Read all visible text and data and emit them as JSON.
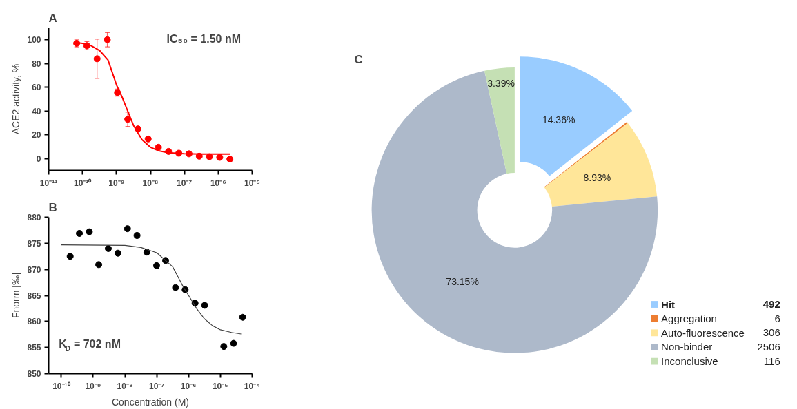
{
  "chart_data": [
    {
      "type": "scatter",
      "title": "A",
      "ylabel": "ACE2 activity, %",
      "log": "x",
      "marker": "circle",
      "grid": false,
      "xlim": [
        1e-11,
        1e-05
      ],
      "xticks": [
        {
          "value": 1e-11,
          "label": "10⁻¹¹"
        },
        {
          "value": 1e-10,
          "label": "10⁻¹⁰"
        },
        {
          "value": 1e-09,
          "label": "10⁻⁹"
        },
        {
          "value": 1e-08,
          "label": "10⁻⁸"
        },
        {
          "value": 1e-07,
          "label": "10⁻⁷"
        },
        {
          "value": 1e-06,
          "label": "10⁻⁶"
        },
        {
          "value": 1e-05,
          "label": "10⁻⁵"
        }
      ],
      "ylim": [
        -10,
        110
      ],
      "yticks": [
        0,
        20,
        40,
        60,
        80,
        100
      ],
      "annotations": [
        "IC₅₀ = 1.50 nM"
      ],
      "series": [
        {
          "type": "scatter",
          "color": "#ff0000",
          "x": [
            6.7e-11,
            1.34e-10,
            2.68e-10,
            5.36e-10,
            1.07e-09,
            2.14e-09,
            4.29e-09,
            8.58e-09,
            1.72e-08,
            3.43e-08,
            6.86e-08,
            1.37e-07,
            2.75e-07,
            5.49e-07,
            1.1e-06,
            2.2e-06
          ],
          "values": [
            97,
            95,
            84,
            100,
            55.5,
            33,
            25,
            16.5,
            9.5,
            6,
            4.5,
            4,
            2,
            1.5,
            1,
            -0.5
          ],
          "errors": [
            3,
            3.5,
            [
              67.5,
              100.5
            ],
            [
              94,
              106
            ],
            3,
            [
              27,
              39
            ],
            null,
            null,
            null,
            null,
            null,
            null,
            null,
            null,
            null,
            null
          ]
        },
        {
          "type": "line",
          "marker": "none",
          "color": "#ff0000",
          "x": [
            6.6e-11,
            1e-10,
            1.78e-10,
            3.16e-10,
            5.62e-10,
            1e-09,
            1.5e-09,
            2.14e-09,
            3.16e-09,
            5.62e-09,
            1e-08,
            1.78e-08,
            3.16e-08,
            1e-07,
            3.16e-07,
            2.2e-06
          ],
          "values": [
            97.5,
            97,
            95,
            91,
            83,
            62,
            51,
            40,
            28,
            16,
            9.5,
            6.5,
            5,
            4,
            3.8,
            3.8
          ]
        }
      ]
    },
    {
      "type": "scatter",
      "title": "B",
      "xlabel": "Concentration (M)",
      "ylabel": "Fnorm [‰]",
      "log": "x",
      "marker": "circle",
      "grid": false,
      "xlim": [
        4e-11,
        0.0001
      ],
      "xticks": [
        {
          "value": 1e-10,
          "label": "10⁻¹⁰"
        },
        {
          "value": 1e-09,
          "label": "10⁻⁹"
        },
        {
          "value": 1e-08,
          "label": "10⁻⁸"
        },
        {
          "value": 1e-07,
          "label": "10⁻⁷"
        },
        {
          "value": 1e-06,
          "label": "10⁻⁶"
        },
        {
          "value": 1e-05,
          "label": "10⁻⁵"
        },
        {
          "value": 0.0001,
          "label": "10⁻⁴"
        }
      ],
      "ylim": [
        850,
        880
      ],
      "yticks": [
        850,
        855,
        860,
        865,
        870,
        875,
        880
      ],
      "annotations": [
        "K$_{D}$ = 702 nM"
      ],
      "series": [
        {
          "type": "scatter",
          "color": "#000000",
          "x": [
            1.9e-10,
            3.7e-10,
            7.6e-10,
            1.5e-09,
            3e-09,
            6e-09,
            1.2e-08,
            2.4e-08,
            4.9e-08,
            9.9e-08,
            1.9e-07,
            3.9e-07,
            7.8e-07,
            1.6e-06,
            3.2e-06,
            1.28e-05,
            2.6e-05,
            5e-05
          ],
          "values": [
            872.5,
            876.9,
            877.2,
            870.9,
            874.0,
            873.1,
            877.8,
            876.5,
            873.3,
            870.7,
            871.7,
            866.5,
            866.1,
            863.5,
            863.1,
            855.2,
            855.8,
            860.8
          ]
        },
        {
          "type": "line",
          "marker": "none",
          "color": "#404040",
          "x": [
            1e-10,
            1e-08,
            3.16e-08,
            1e-07,
            3.16e-07,
            7e-07,
            1e-06,
            1.78e-06,
            3.16e-06,
            5.62e-06,
            1e-05,
            2.24e-05,
            4.5e-05
          ],
          "values": [
            874.7,
            874.6,
            874.2,
            873.2,
            870.5,
            866.5,
            865,
            862.5,
            860.5,
            859.2,
            858.4,
            857.9,
            857.6
          ]
        }
      ]
    },
    {
      "type": "donut",
      "title": "C",
      "legend": "bottom right",
      "categories": [
        "Hit",
        "Aggregation",
        "Auto-fluorescence",
        "Non-binder",
        "Inconclusive"
      ],
      "values": [
        14.36,
        0.17,
        8.93,
        73.15,
        3.39
      ],
      "annotations": [
        "492",
        "6",
        "306",
        "2506",
        "116"
      ],
      "colors": [
        "#99ccff",
        "#ed7d31",
        "#ffe699",
        "#adb9ca",
        "#c5e0b4"
      ],
      "value_labels": [
        "14.36%",
        null,
        "8.93%",
        "73.15%",
        "3.39%"
      ]
    }
  ]
}
